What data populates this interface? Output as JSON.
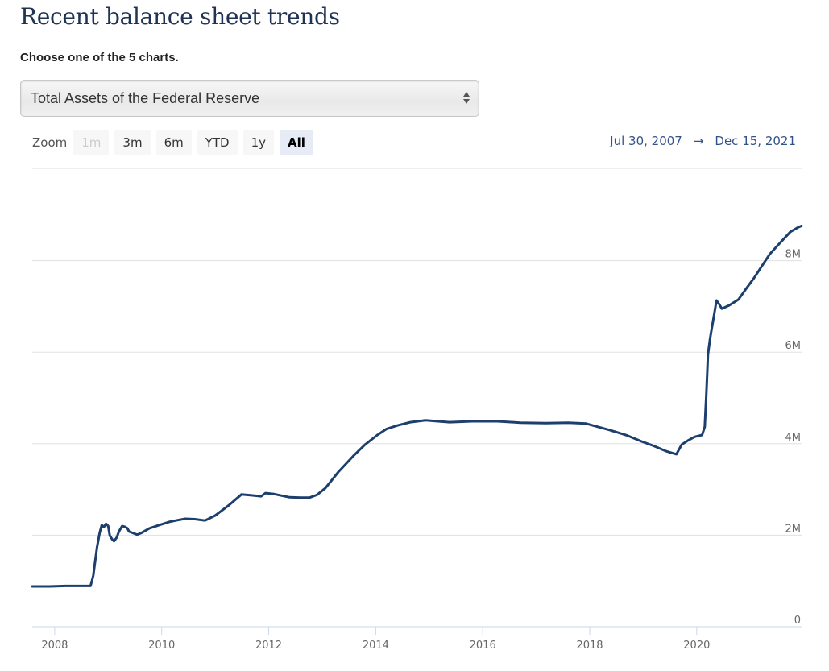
{
  "header": {
    "title": "Recent balance sheet trends",
    "subtitle": "Choose one of the 5 charts."
  },
  "chart_selector": {
    "selected": "Total Assets of the Federal Reserve",
    "icon": "up-down-arrows-icon"
  },
  "zoom_controls": {
    "label": "Zoom",
    "buttons": [
      {
        "label": "1m",
        "state": "disabled"
      },
      {
        "label": "3m",
        "state": "normal"
      },
      {
        "label": "6m",
        "state": "normal"
      },
      {
        "label": "YTD",
        "state": "normal"
      },
      {
        "label": "1y",
        "state": "normal"
      },
      {
        "label": "All",
        "state": "active"
      }
    ]
  },
  "date_range": {
    "from": "Jul 30, 2007",
    "arrow": "→",
    "to": "Dec 15, 2021"
  },
  "colors": {
    "line": "#1c3f6e",
    "grid": "#e0e0e0",
    "accent_text": "#335288"
  },
  "chart_data": {
    "type": "line",
    "title": "Total Assets of the Federal Reserve",
    "xlabel": "",
    "ylabel": "",
    "x_unit": "year (decimal)",
    "y_unit": "millions of dollars",
    "xlim": [
      2007.58,
      2021.96
    ],
    "ylim": [
      0,
      10000000
    ],
    "grid": true,
    "legend": "none",
    "x_ticks": [
      2008,
      2010,
      2012,
      2014,
      2016,
      2018,
      2020
    ],
    "x_tick_labels": [
      "2008",
      "2010",
      "2012",
      "2014",
      "2016",
      "2018",
      "2020"
    ],
    "y_ticks": [
      0,
      2000000,
      4000000,
      6000000,
      8000000
    ],
    "y_tick_labels": [
      "0",
      "2M",
      "4M",
      "6M",
      "8M"
    ],
    "y_axis_side": "right",
    "series": [
      {
        "name": "Total Assets",
        "x": [
          2007.58,
          2007.9,
          2008.2,
          2008.5,
          2008.67,
          2008.72,
          2008.79,
          2008.84,
          2008.88,
          2008.92,
          2008.96,
          2009.0,
          2009.03,
          2009.08,
          2009.11,
          2009.16,
          2009.2,
          2009.26,
          2009.32,
          2009.36,
          2009.39,
          2009.46,
          2009.54,
          2009.62,
          2009.77,
          2009.95,
          2010.14,
          2010.3,
          2010.44,
          2010.62,
          2010.81,
          2011.0,
          2011.25,
          2011.49,
          2011.7,
          2011.86,
          2011.94,
          2012.1,
          2012.39,
          2012.6,
          2012.76,
          2012.9,
          2013.06,
          2013.3,
          2013.58,
          2013.8,
          2014.03,
          2014.2,
          2014.41,
          2014.65,
          2014.93,
          2015.38,
          2015.8,
          2016.28,
          2016.7,
          2017.18,
          2017.6,
          2017.93,
          2018.37,
          2018.7,
          2018.97,
          2019.2,
          2019.42,
          2019.62,
          2019.72,
          2019.85,
          2019.96,
          2020.1,
          2020.15,
          2020.18,
          2020.21,
          2020.25,
          2020.3,
          2020.37,
          2020.42,
          2020.47,
          2020.6,
          2020.78,
          2020.92,
          2021.07,
          2021.2,
          2021.37,
          2021.55,
          2021.75,
          2021.9,
          2021.96
        ],
        "values": [
          880000,
          880000,
          890000,
          890000,
          890000,
          1110000,
          1730000,
          2050000,
          2220000,
          2180000,
          2250000,
          2200000,
          1990000,
          1900000,
          1870000,
          1950000,
          2080000,
          2200000,
          2180000,
          2150000,
          2080000,
          2050000,
          2010000,
          2050000,
          2150000,
          2220000,
          2290000,
          2330000,
          2360000,
          2350000,
          2320000,
          2430000,
          2650000,
          2890000,
          2870000,
          2850000,
          2920000,
          2900000,
          2830000,
          2820000,
          2820000,
          2880000,
          3030000,
          3380000,
          3730000,
          3980000,
          4190000,
          4320000,
          4400000,
          4470000,
          4510000,
          4470000,
          4490000,
          4490000,
          4460000,
          4450000,
          4460000,
          4440000,
          4300000,
          4180000,
          4050000,
          3950000,
          3840000,
          3770000,
          3980000,
          4080000,
          4150000,
          4190000,
          4370000,
          5100000,
          5950000,
          6300000,
          6650000,
          7130000,
          7050000,
          6950000,
          7020000,
          7150000,
          7380000,
          7620000,
          7850000,
          8150000,
          8380000,
          8630000,
          8730000,
          8760000
        ]
      }
    ]
  }
}
